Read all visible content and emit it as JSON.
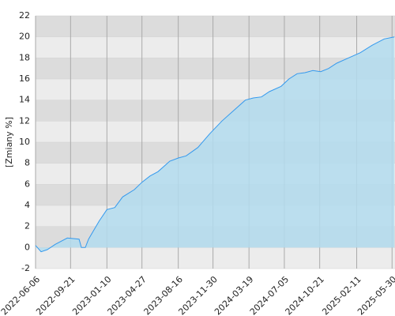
{
  "chart_data": {
    "type": "area",
    "y_label": "[Zmiany %]",
    "x": [
      "2022-06-06",
      "2022-06-23",
      "2022-07-12",
      "2022-08-05",
      "2022-09-11",
      "2022-10-17",
      "2022-10-24",
      "2022-11-05",
      "2022-11-15",
      "2022-12-17",
      "2023-01-10",
      "2023-02-03",
      "2023-02-27",
      "2023-04-04",
      "2023-04-27",
      "2023-05-22",
      "2023-06-15",
      "2023-07-21",
      "2023-08-16",
      "2023-09-09",
      "2023-10-15",
      "2023-11-20",
      "2023-12-27",
      "2024-02-01",
      "2024-03-08",
      "2024-04-01",
      "2024-04-26",
      "2024-05-20",
      "2024-06-25",
      "2024-07-19",
      "2024-08-13",
      "2024-09-06",
      "2024-09-30",
      "2024-10-24",
      "2024-11-17",
      "2024-12-12",
      "2025-01-17",
      "2025-02-22",
      "2025-03-30",
      "2025-05-06",
      "2025-06-06"
    ],
    "values": [
      0.2,
      -0.4,
      -0.2,
      0.3,
      0.9,
      0.8,
      0.0,
      0.0,
      0.8,
      2.5,
      3.6,
      3.8,
      4.8,
      5.5,
      6.2,
      6.8,
      7.2,
      8.2,
      8.5,
      8.7,
      9.5,
      10.8,
      12.0,
      13.0,
      14.0,
      14.2,
      14.3,
      14.8,
      15.3,
      16.0,
      16.5,
      16.6,
      16.8,
      16.7,
      17.0,
      17.5,
      18.0,
      18.5,
      19.2,
      19.8,
      20.0
    ],
    "color": "#3399ee",
    "fill": "#b3dcee",
    "xlim": [
      "2022-06-06",
      "2025-06-08"
    ],
    "xticks": [
      "2022-06-06",
      "2022-09-21",
      "2023-01-10",
      "2023-04-27",
      "2023-08-16",
      "2023-11-30",
      "2024-03-19",
      "2024-07-05",
      "2024-10-21",
      "2025-02-11",
      "2025-05-30"
    ],
    "ylim": [
      -2,
      22
    ],
    "yticks": [
      -2,
      0,
      2,
      4,
      6,
      8,
      10,
      12,
      14,
      16,
      18,
      20,
      22
    ],
    "grid": true
  }
}
